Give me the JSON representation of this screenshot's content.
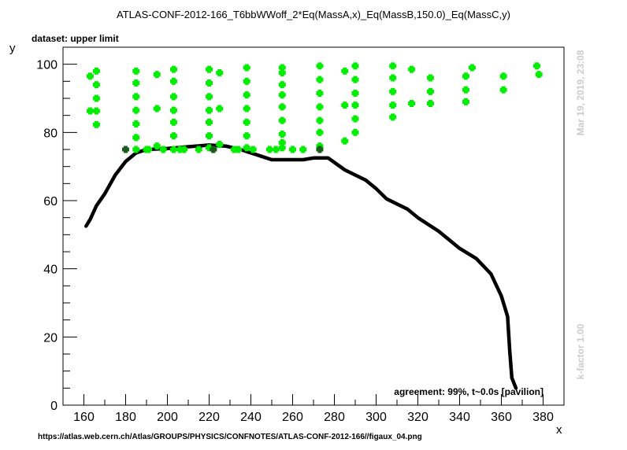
{
  "header": {
    "title": "ATLAS-CONF-2012-166_T6bbWWoff_2*Eq(MassA,x)_Eq(MassB,150.0)_Eq(MassC,y)",
    "dataset": "dataset: upper limit",
    "timestamp": "Mar 19, 2019, 23:08",
    "kfactor": "k-factor 1.00",
    "agreement": "agreement: 99%, t~0.0s [pavilion]",
    "source": "https://atlas.web.cern.ch/Atlas/GROUPS/PHYSICS/CONFNOTES/ATLAS-CONF-2012-166//figaux_04.png"
  },
  "chart_data": {
    "type": "scatter",
    "title": "ATLAS-CONF-2012-166_T6bbWWoff_2*Eq(MassA,x)_Eq(MassB,150.0)_Eq(MassC,y)",
    "xlabel": "x",
    "ylabel": "y",
    "xlim": [
      150,
      390
    ],
    "ylim": [
      0,
      105
    ],
    "xticks": [
      160,
      180,
      200,
      220,
      240,
      260,
      280,
      300,
      320,
      340,
      360,
      380
    ],
    "yticks": [
      0,
      20,
      40,
      60,
      80,
      100
    ],
    "grid": false,
    "colors": {
      "allowed": "#00ee00",
      "excluded": "#1a5c1a",
      "curve": "#000000"
    },
    "series": [
      {
        "role": "allowed-points",
        "points": [
          [
            163,
            96.5
          ],
          [
            163,
            86.3
          ],
          [
            166,
            98
          ],
          [
            166,
            94
          ],
          [
            166,
            90
          ],
          [
            166,
            86.3
          ],
          [
            166,
            82.3
          ],
          [
            185,
            98
          ],
          [
            185,
            94.5
          ],
          [
            185,
            90.5
          ],
          [
            185,
            86.5
          ],
          [
            185,
            82.5
          ],
          [
            185,
            78.5
          ],
          [
            185,
            75
          ],
          [
            190,
            75
          ],
          [
            191,
            75
          ],
          [
            195,
            97
          ],
          [
            195,
            87
          ],
          [
            195,
            76
          ],
          [
            198,
            75
          ],
          [
            203,
            98.5
          ],
          [
            203,
            95
          ],
          [
            203,
            90.5
          ],
          [
            203,
            86.5
          ],
          [
            203,
            83
          ],
          [
            203,
            79
          ],
          [
            203,
            75
          ],
          [
            206,
            75
          ],
          [
            208,
            75
          ],
          [
            215,
            75
          ],
          [
            220,
            98.5
          ],
          [
            220,
            94.5
          ],
          [
            220,
            90.5
          ],
          [
            220,
            86.5
          ],
          [
            220,
            83
          ],
          [
            220,
            79
          ],
          [
            220,
            75.5
          ],
          [
            222,
            75
          ],
          [
            225,
            97.5
          ],
          [
            225,
            87
          ],
          [
            225,
            76.5
          ],
          [
            232,
            75
          ],
          [
            234,
            75
          ],
          [
            238,
            99
          ],
          [
            238,
            95
          ],
          [
            238,
            91
          ],
          [
            238,
            87
          ],
          [
            238,
            83
          ],
          [
            238,
            79
          ],
          [
            238,
            75.5
          ],
          [
            241,
            75
          ],
          [
            249,
            75
          ],
          [
            252,
            75
          ],
          [
            255,
            99
          ],
          [
            255,
            97.5
          ],
          [
            255,
            94
          ],
          [
            255,
            91
          ],
          [
            255,
            87.5
          ],
          [
            255,
            83.5
          ],
          [
            255,
            79.5
          ],
          [
            255,
            77
          ],
          [
            255,
            75.5
          ],
          [
            260,
            75
          ],
          [
            265,
            75
          ],
          [
            273,
            99.5
          ],
          [
            273,
            95.5
          ],
          [
            273,
            91.5
          ],
          [
            273,
            87.5
          ],
          [
            273,
            83.5
          ],
          [
            273,
            80
          ],
          [
            273,
            76
          ],
          [
            285,
            98
          ],
          [
            285,
            88
          ],
          [
            285,
            77.5
          ],
          [
            290,
            99.5
          ],
          [
            290,
            95.5
          ],
          [
            290,
            91.5
          ],
          [
            290,
            88
          ],
          [
            290,
            84
          ],
          [
            290,
            80
          ],
          [
            308,
            99.5
          ],
          [
            308,
            96
          ],
          [
            308,
            92
          ],
          [
            308,
            88
          ],
          [
            308,
            84.5
          ],
          [
            317,
            98.5
          ],
          [
            317,
            88.5
          ],
          [
            326,
            96
          ],
          [
            326,
            92
          ],
          [
            326,
            88.5
          ],
          [
            343,
            96.5
          ],
          [
            343,
            92.5
          ],
          [
            343,
            89
          ],
          [
            346,
            99
          ],
          [
            361,
            96.5
          ],
          [
            361,
            92.5
          ],
          [
            377,
            99.5
          ],
          [
            378,
            97
          ]
        ]
      },
      {
        "role": "excluded-points",
        "points": [
          [
            180,
            75
          ],
          [
            222,
            75
          ],
          [
            273,
            75
          ]
        ]
      },
      {
        "role": "limit-curve",
        "points": [
          [
            161,
            52.5
          ],
          [
            163,
            54.5
          ],
          [
            166,
            58.5
          ],
          [
            170,
            62
          ],
          [
            175,
            67.5
          ],
          [
            180,
            71.5
          ],
          [
            185,
            74
          ],
          [
            190,
            75
          ],
          [
            200,
            75.3
          ],
          [
            210,
            75.8
          ],
          [
            220,
            76.3
          ],
          [
            228,
            76
          ],
          [
            235,
            75
          ],
          [
            245,
            73
          ],
          [
            250,
            72
          ],
          [
            257,
            72
          ],
          [
            265,
            72
          ],
          [
            270,
            72.5
          ],
          [
            277,
            72.5
          ],
          [
            285,
            69
          ],
          [
            295,
            66
          ],
          [
            300,
            63.5
          ],
          [
            305,
            60.5
          ],
          [
            315,
            57.5
          ],
          [
            320,
            55
          ],
          [
            330,
            51
          ],
          [
            340,
            46
          ],
          [
            348,
            43
          ],
          [
            355,
            38.5
          ],
          [
            360,
            32
          ],
          [
            363,
            26
          ],
          [
            364,
            16
          ],
          [
            365,
            8
          ],
          [
            367,
            5
          ]
        ]
      }
    ]
  }
}
